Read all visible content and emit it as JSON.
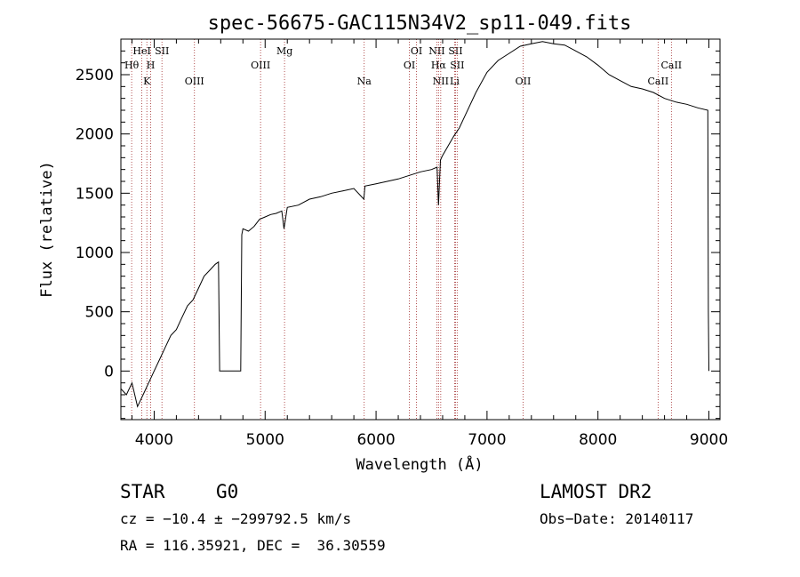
{
  "chart_data": {
    "type": "line",
    "title": "spec-56675-GAC115N34V2_sp11-049.fits",
    "xlabel": "Wavelength (Å)",
    "ylabel": "Flux (relative)",
    "xlim": [
      3700,
      9100
    ],
    "ylim": [
      -410,
      2800
    ],
    "x_ticks": [
      4000,
      5000,
      6000,
      7000,
      8000,
      9000
    ],
    "y_ticks": [
      0,
      500,
      1000,
      1500,
      2000,
      2500
    ],
    "grid": false,
    "series": [
      {
        "x": [
          3700,
          3750,
          3800,
          3850,
          3900,
          3950,
          4000,
          4050,
          4100,
          4150,
          4200,
          4250,
          4300,
          4350,
          4400,
          4450,
          4500,
          4550,
          4580,
          4590,
          4600,
          4650,
          4700,
          4750,
          4780,
          4790,
          4800,
          4850,
          4900,
          4950,
          5000,
          5050,
          5100,
          5150,
          5170,
          5200,
          5300,
          5400,
          5500,
          5600,
          5700,
          5800,
          5890,
          5900,
          6000,
          6100,
          6200,
          6300,
          6400,
          6500,
          6550,
          6563,
          6580,
          6600,
          6650,
          6700,
          6750,
          6800,
          6900,
          7000,
          7100,
          7200,
          7300,
          7400,
          7500,
          7600,
          7700,
          7800,
          7900,
          8000,
          8100,
          8200,
          8300,
          8400,
          8500,
          8600,
          8700,
          8800,
          8900,
          8990,
          8995,
          9000
        ],
        "y": [
          -150,
          -200,
          -100,
          -300,
          -200,
          -100,
          0,
          100,
          200,
          300,
          350,
          450,
          550,
          600,
          700,
          800,
          850,
          900,
          920,
          0,
          0,
          0,
          0,
          0,
          0,
          1150,
          1200,
          1180,
          1220,
          1280,
          1300,
          1320,
          1330,
          1350,
          1200,
          1380,
          1400,
          1450,
          1470,
          1500,
          1520,
          1540,
          1450,
          1560,
          1580,
          1600,
          1620,
          1650,
          1680,
          1700,
          1720,
          1400,
          1780,
          1820,
          1900,
          1980,
          2050,
          2150,
          2350,
          2520,
          2620,
          2680,
          2740,
          2760,
          2780,
          2760,
          2750,
          2700,
          2650,
          2580,
          2500,
          2450,
          2400,
          2380,
          2350,
          2300,
          2270,
          2250,
          2220,
          2200,
          500,
          0
        ]
      }
    ],
    "spectral_lines": [
      {
        "label": "Hθ",
        "x": 3797,
        "row": 3
      },
      {
        "label": "HeI",
        "x": 3889,
        "row": 1
      },
      {
        "label": "K",
        "x": 3934,
        "row": 4
      },
      {
        "label": "H",
        "x": 3969,
        "row": 3
      },
      {
        "label": "SII",
        "x": 4070,
        "row": 1
      },
      {
        "label": "OIII",
        "x": 4363,
        "row": 4
      },
      {
        "label": "OIII",
        "x": 4959,
        "row": 3
      },
      {
        "label": "Mg",
        "x": 5175,
        "row": 1
      },
      {
        "label": "Na",
        "x": 5893,
        "row": 4
      },
      {
        "label": "OI",
        "x": 6300,
        "row": 3
      },
      {
        "label": "OI",
        "x": 6364,
        "row": 1
      },
      {
        "label": "NII",
        "x": 6548,
        "row": 1
      },
      {
        "label": "NII",
        "x": 6583,
        "row": 4
      },
      {
        "label": "Hα",
        "x": 6563,
        "row": 3
      },
      {
        "label": "SII",
        "x": 6716,
        "row": 1
      },
      {
        "label": "SII",
        "x": 6731,
        "row": 3
      },
      {
        "label": "Li",
        "x": 6708,
        "row": 4
      },
      {
        "label": "OII",
        "x": 7325,
        "row": 4
      },
      {
        "label": "CaII",
        "x": 8542,
        "row": 4
      },
      {
        "label": "CaII",
        "x": 8662,
        "row": 3
      }
    ]
  },
  "info": {
    "object_class": "STAR",
    "subclass": "G0",
    "survey": "LAMOST DR2",
    "cz": "cz = −10.4 ± −299792.5 km/s",
    "obs_date": "Obs−Date: 20140117",
    "coords": "RA = 116.35921, DEC =  36.30559"
  }
}
